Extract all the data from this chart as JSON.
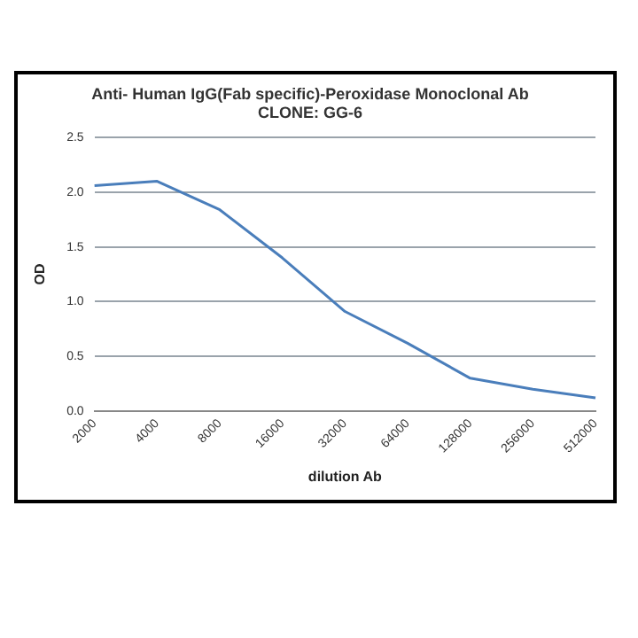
{
  "chart_data": {
    "type": "line",
    "title": [
      "Anti- Human IgG(Fab specific)-Peroxidase Monoclonal Ab",
      "CLONE: GG-6"
    ],
    "xlabel": "dilution Ab",
    "ylabel": "OD",
    "categories": [
      "2000",
      "4000",
      "8000",
      "16000",
      "32000",
      "64000",
      "128000",
      "256000",
      "512000"
    ],
    "series": [
      {
        "color": "#4a7ebb",
        "values": [
          2.06,
          2.1,
          1.84,
          1.4,
          0.91,
          0.62,
          0.3,
          0.2,
          0.12
        ]
      }
    ],
    "ylim": [
      0,
      2.5
    ],
    "yticks": [
      {
        "value": 0,
        "label": "0.0"
      },
      {
        "value": 0.5,
        "label": "0.5"
      },
      {
        "value": 1,
        "label": "1.0"
      },
      {
        "value": 1.5,
        "label": "1.5"
      },
      {
        "value": 2,
        "label": "2.0"
      },
      {
        "value": 2.5,
        "label": "2.5"
      }
    ],
    "grid": "y",
    "legend": false,
    "marker": "none",
    "line_style": "solid"
  }
}
